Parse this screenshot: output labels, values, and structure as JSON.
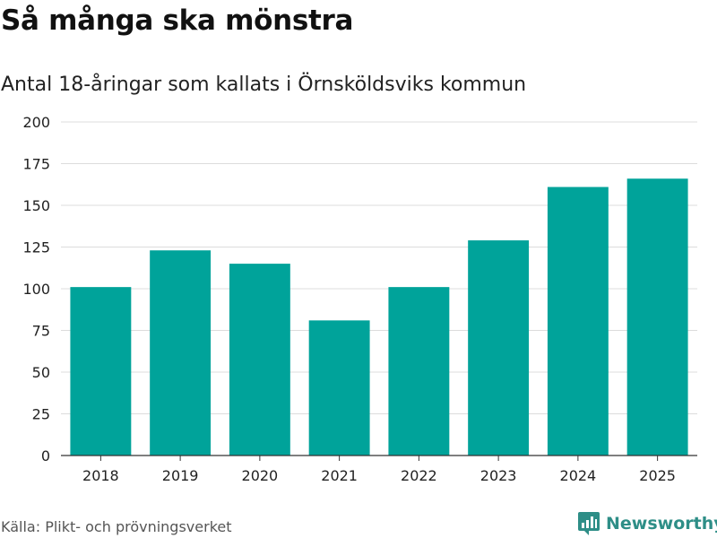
{
  "title": "Så många ska mönstra",
  "subtitle": "Antal 18-åringar som kallats i Örnsköldsviks kommun",
  "source": "Källa: Plikt- och prövningsverket",
  "brand": "Newsworthy",
  "colors": {
    "bar": "#00a39a",
    "grid": "#dcdcdc",
    "axis": "#333333",
    "brand": "#2e8e87"
  },
  "chart_data": {
    "type": "bar",
    "title": "Så många ska mönstra",
    "subtitle": "Antal 18-åringar som kallats i Örnsköldsviks kommun",
    "xlabel": "",
    "ylabel": "",
    "categories": [
      "2018",
      "2019",
      "2020",
      "2021",
      "2022",
      "2023",
      "2024",
      "2025"
    ],
    "values": [
      101,
      123,
      115,
      81,
      101,
      129,
      161,
      166
    ],
    "ylim": [
      0,
      200
    ],
    "yticks": [
      0,
      25,
      50,
      75,
      100,
      125,
      150,
      175,
      200
    ],
    "grid": true,
    "legend": "none"
  }
}
